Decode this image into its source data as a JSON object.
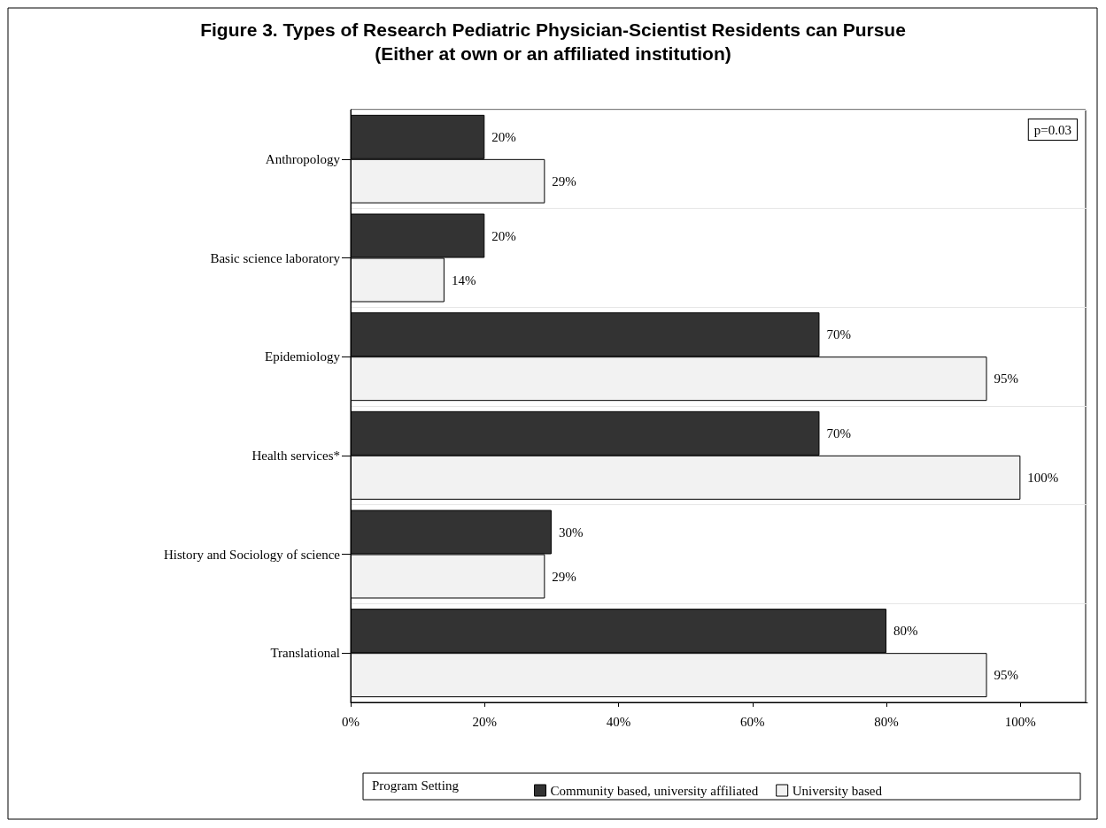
{
  "chart_data": {
    "type": "bar",
    "orientation": "horizontal",
    "title": "Figure 3. Types of Research Pediatric Physician-Scientist Residents can Pursue",
    "subtitle": "(Either at own or an affiliated institution)",
    "categories": [
      "Anthropology",
      "Basic science laboratory",
      "Epidemiology",
      "Health services*",
      "History and Sociology of science",
      "Translational"
    ],
    "series": [
      {
        "name": "Community based, university affiliated",
        "color": "#333333",
        "values": [
          20,
          20,
          70,
          70,
          30,
          80
        ],
        "value_labels": [
          "20%",
          "20%",
          "70%",
          "70%",
          "30%",
          "80%"
        ]
      },
      {
        "name": "University based",
        "color": "#f2f2f2",
        "values": [
          29,
          14,
          95,
          100,
          29,
          95
        ],
        "value_labels": [
          "29%",
          "14%",
          "95%",
          "100%",
          "29%",
          "95%"
        ]
      }
    ],
    "xlim": [
      0,
      110
    ],
    "xticks": [
      {
        "value": 0,
        "label": "0%"
      },
      {
        "value": 20,
        "label": "20%"
      },
      {
        "value": 40,
        "label": "40%"
      },
      {
        "value": 60,
        "label": "60%"
      },
      {
        "value": 80,
        "label": "80%"
      },
      {
        "value": 100,
        "label": "100%"
      }
    ],
    "grid": "y",
    "legend": "bottom",
    "legend_title": "Program Setting",
    "annotations": [
      "p=0.03"
    ]
  }
}
